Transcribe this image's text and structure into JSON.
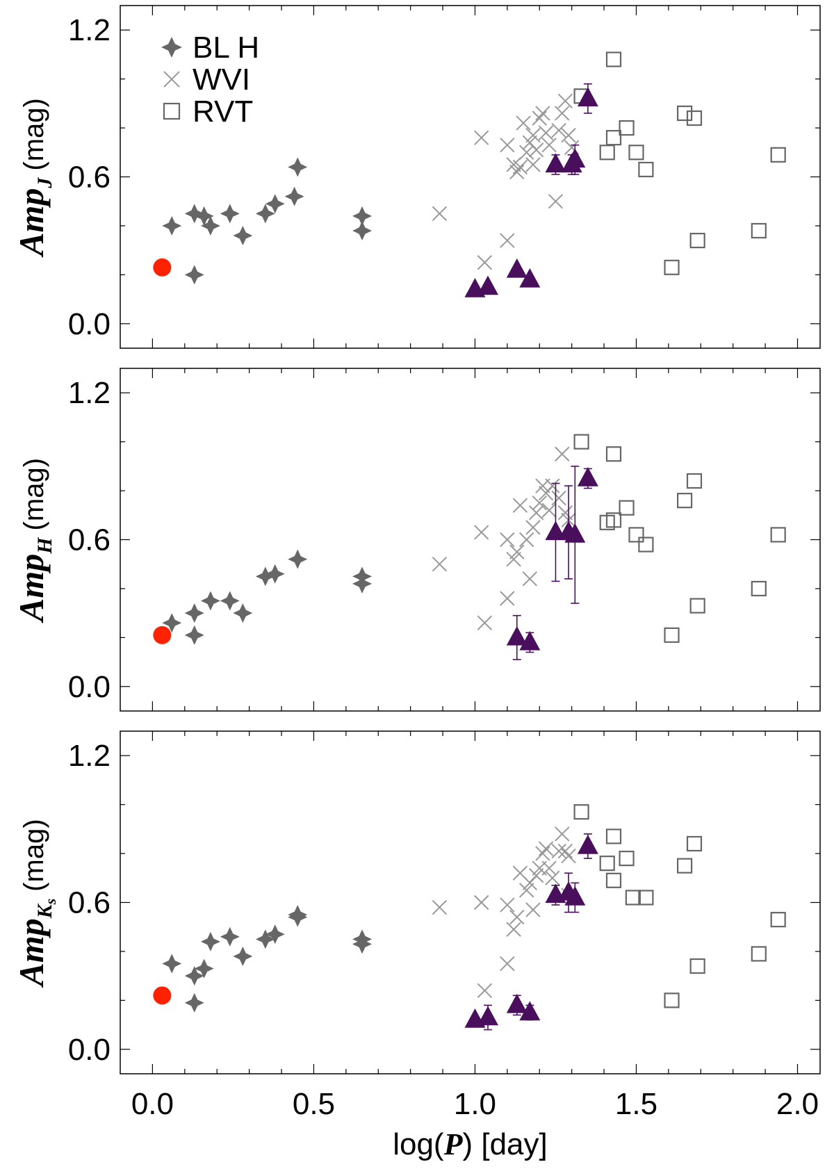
{
  "colors": {
    "blh": "#666666",
    "wvi": "#999999",
    "rvt": "#666666",
    "triangle": "#4a0f5c",
    "red_point": "#ff2200",
    "axis": "#000000"
  },
  "chart_data": {
    "type": "scatter",
    "xlabel_prefix": "log(",
    "xlabel_var": "P",
    "xlabel_suffix": ") [day]",
    "xlim": [
      -0.1,
      2.07
    ],
    "ylim": [
      -0.1,
      1.3
    ],
    "x_ticks": [
      "0.0",
      "0.5",
      "1.0",
      "1.5",
      "2.0"
    ],
    "y_ticks": [
      "0.0",
      "0.6",
      "1.2"
    ],
    "legend": {
      "position": "top-left",
      "entries": [
        {
          "label": "BL H",
          "marker": "star4",
          "series": "BLH"
        },
        {
          "label": "WVI",
          "marker": "cross",
          "series": "WVI"
        },
        {
          "label": "RVT",
          "marker": "square",
          "series": "RVT"
        }
      ]
    },
    "panels": [
      {
        "ylabel_main": "Amp",
        "ylabel_sub": "J",
        "ylabel_subsub": "",
        "ylabel_unit": "(mag)",
        "red_point": [
          [
            0.03,
            0.23
          ]
        ],
        "BLH": [
          [
            0.06,
            0.4
          ],
          [
            0.13,
            0.45
          ],
          [
            0.16,
            0.44
          ],
          [
            0.18,
            0.4
          ],
          [
            0.13,
            0.2
          ],
          [
            0.24,
            0.45
          ],
          [
            0.28,
            0.36
          ],
          [
            0.35,
            0.45
          ],
          [
            0.38,
            0.49
          ],
          [
            0.44,
            0.52
          ],
          [
            0.45,
            0.64
          ],
          [
            0.65,
            0.38
          ],
          [
            0.65,
            0.44
          ]
        ],
        "WVI": [
          [
            0.89,
            0.45
          ],
          [
            1.02,
            0.76
          ],
          [
            1.03,
            0.25
          ],
          [
            1.1,
            0.34
          ],
          [
            1.1,
            0.73
          ],
          [
            1.12,
            0.65
          ],
          [
            1.13,
            0.62
          ],
          [
            1.14,
            0.64
          ],
          [
            1.15,
            0.82
          ],
          [
            1.16,
            0.7
          ],
          [
            1.17,
            0.74
          ],
          [
            1.18,
            0.77
          ],
          [
            1.18,
            0.65
          ],
          [
            1.19,
            0.71
          ],
          [
            1.2,
            0.84
          ],
          [
            1.21,
            0.86
          ],
          [
            1.22,
            0.78
          ],
          [
            1.23,
            0.73
          ],
          [
            1.25,
            0.5
          ],
          [
            1.26,
            0.79
          ],
          [
            1.27,
            0.86
          ],
          [
            1.28,
            0.91
          ],
          [
            1.3,
            0.72
          ],
          [
            1.29,
            0.77
          ]
        ],
        "RVT": [
          [
            1.33,
            0.93
          ],
          [
            1.43,
            1.08
          ],
          [
            1.41,
            0.7
          ],
          [
            1.43,
            0.76
          ],
          [
            1.47,
            0.8
          ],
          [
            1.5,
            0.7
          ],
          [
            1.53,
            0.63
          ],
          [
            1.61,
            0.23
          ],
          [
            1.65,
            0.86
          ],
          [
            1.68,
            0.84
          ],
          [
            1.69,
            0.34
          ],
          [
            1.88,
            0.38
          ],
          [
            1.94,
            0.69
          ]
        ],
        "triangles": [
          {
            "x": 1.0,
            "y": 0.14,
            "err": 0.0
          },
          {
            "x": 1.04,
            "y": 0.15,
            "err": 0.0
          },
          {
            "x": 1.13,
            "y": 0.22,
            "err": 0.0
          },
          {
            "x": 1.17,
            "y": 0.18,
            "err": 0.0
          },
          {
            "x": 1.25,
            "y": 0.65,
            "err": 0.04
          },
          {
            "x": 1.3,
            "y": 0.65,
            "err": 0.04
          },
          {
            "x": 1.31,
            "y": 0.67,
            "err": 0.06
          },
          {
            "x": 1.35,
            "y": 0.92,
            "err": 0.06
          }
        ]
      },
      {
        "ylabel_main": "Amp",
        "ylabel_sub": "H",
        "ylabel_subsub": "",
        "ylabel_unit": "(mag)",
        "red_point": [
          [
            0.03,
            0.21
          ]
        ],
        "BLH": [
          [
            0.06,
            0.26
          ],
          [
            0.13,
            0.3
          ],
          [
            0.13,
            0.21
          ],
          [
            0.18,
            0.35
          ],
          [
            0.24,
            0.35
          ],
          [
            0.28,
            0.3
          ],
          [
            0.35,
            0.45
          ],
          [
            0.38,
            0.46
          ],
          [
            0.45,
            0.52
          ],
          [
            0.65,
            0.42
          ],
          [
            0.65,
            0.45
          ]
        ],
        "WVI": [
          [
            0.89,
            0.5
          ],
          [
            1.02,
            0.63
          ],
          [
            1.03,
            0.26
          ],
          [
            1.1,
            0.36
          ],
          [
            1.1,
            0.6
          ],
          [
            1.12,
            0.52
          ],
          [
            1.13,
            0.55
          ],
          [
            1.14,
            0.74
          ],
          [
            1.16,
            0.6
          ],
          [
            1.17,
            0.44
          ],
          [
            1.18,
            0.65
          ],
          [
            1.19,
            0.71
          ],
          [
            1.2,
            0.75
          ],
          [
            1.21,
            0.82
          ],
          [
            1.22,
            0.79
          ],
          [
            1.23,
            0.72
          ],
          [
            1.24,
            0.82
          ],
          [
            1.26,
            0.77
          ],
          [
            1.27,
            0.95
          ],
          [
            1.28,
            0.71
          ],
          [
            1.29,
            0.68
          ]
        ],
        "RVT": [
          [
            1.33,
            1.0
          ],
          [
            1.43,
            0.95
          ],
          [
            1.41,
            0.67
          ],
          [
            1.43,
            0.68
          ],
          [
            1.47,
            0.73
          ],
          [
            1.5,
            0.62
          ],
          [
            1.53,
            0.58
          ],
          [
            1.61,
            0.21
          ],
          [
            1.65,
            0.76
          ],
          [
            1.68,
            0.84
          ],
          [
            1.69,
            0.33
          ],
          [
            1.88,
            0.4
          ],
          [
            1.94,
            0.62
          ]
        ],
        "triangles": [
          {
            "x": 1.13,
            "y": 0.2,
            "err": 0.09
          },
          {
            "x": 1.17,
            "y": 0.18,
            "err": 0.04
          },
          {
            "x": 1.25,
            "y": 0.63,
            "err": 0.2
          },
          {
            "x": 1.29,
            "y": 0.63,
            "err": 0.19
          },
          {
            "x": 1.31,
            "y": 0.62,
            "err": 0.28
          },
          {
            "x": 1.35,
            "y": 0.85,
            "err": 0.04
          }
        ]
      },
      {
        "ylabel_main": "Amp",
        "ylabel_sub": "K",
        "ylabel_subsub": "s",
        "ylabel_unit": "(mag)",
        "red_point": [
          [
            0.03,
            0.22
          ]
        ],
        "BLH": [
          [
            0.06,
            0.35
          ],
          [
            0.13,
            0.3
          ],
          [
            0.13,
            0.19
          ],
          [
            0.16,
            0.33
          ],
          [
            0.18,
            0.44
          ],
          [
            0.24,
            0.46
          ],
          [
            0.28,
            0.38
          ],
          [
            0.35,
            0.45
          ],
          [
            0.38,
            0.47
          ],
          [
            0.45,
            0.54
          ],
          [
            0.45,
            0.55
          ],
          [
            0.65,
            0.43
          ],
          [
            0.65,
            0.45
          ]
        ],
        "WVI": [
          [
            0.89,
            0.58
          ],
          [
            1.02,
            0.6
          ],
          [
            1.03,
            0.24
          ],
          [
            1.1,
            0.35
          ],
          [
            1.1,
            0.59
          ],
          [
            1.12,
            0.49
          ],
          [
            1.13,
            0.54
          ],
          [
            1.14,
            0.72
          ],
          [
            1.16,
            0.65
          ],
          [
            1.17,
            0.68
          ],
          [
            1.18,
            0.57
          ],
          [
            1.19,
            0.71
          ],
          [
            1.2,
            0.74
          ],
          [
            1.21,
            0.8
          ],
          [
            1.22,
            0.82
          ],
          [
            1.23,
            0.74
          ],
          [
            1.24,
            0.7
          ],
          [
            1.26,
            0.81
          ],
          [
            1.27,
            0.88
          ],
          [
            1.28,
            0.81
          ],
          [
            1.29,
            0.79
          ],
          [
            1.29,
            0.63
          ]
        ],
        "RVT": [
          [
            1.33,
            0.97
          ],
          [
            1.43,
            0.87
          ],
          [
            1.41,
            0.76
          ],
          [
            1.43,
            0.69
          ],
          [
            1.47,
            0.78
          ],
          [
            1.49,
            0.62
          ],
          [
            1.53,
            0.62
          ],
          [
            1.61,
            0.2
          ],
          [
            1.65,
            0.75
          ],
          [
            1.68,
            0.84
          ],
          [
            1.69,
            0.34
          ],
          [
            1.88,
            0.39
          ],
          [
            1.94,
            0.53
          ]
        ],
        "triangles": [
          {
            "x": 1.0,
            "y": 0.12,
            "err": 0.0
          },
          {
            "x": 1.04,
            "y": 0.13,
            "err": 0.05
          },
          {
            "x": 1.13,
            "y": 0.18,
            "err": 0.04
          },
          {
            "x": 1.17,
            "y": 0.15,
            "err": 0.03
          },
          {
            "x": 1.25,
            "y": 0.63,
            "err": 0.04
          },
          {
            "x": 1.29,
            "y": 0.64,
            "err": 0.08
          },
          {
            "x": 1.31,
            "y": 0.62,
            "err": 0.06
          },
          {
            "x": 1.35,
            "y": 0.83,
            "err": 0.05
          }
        ]
      }
    ]
  }
}
